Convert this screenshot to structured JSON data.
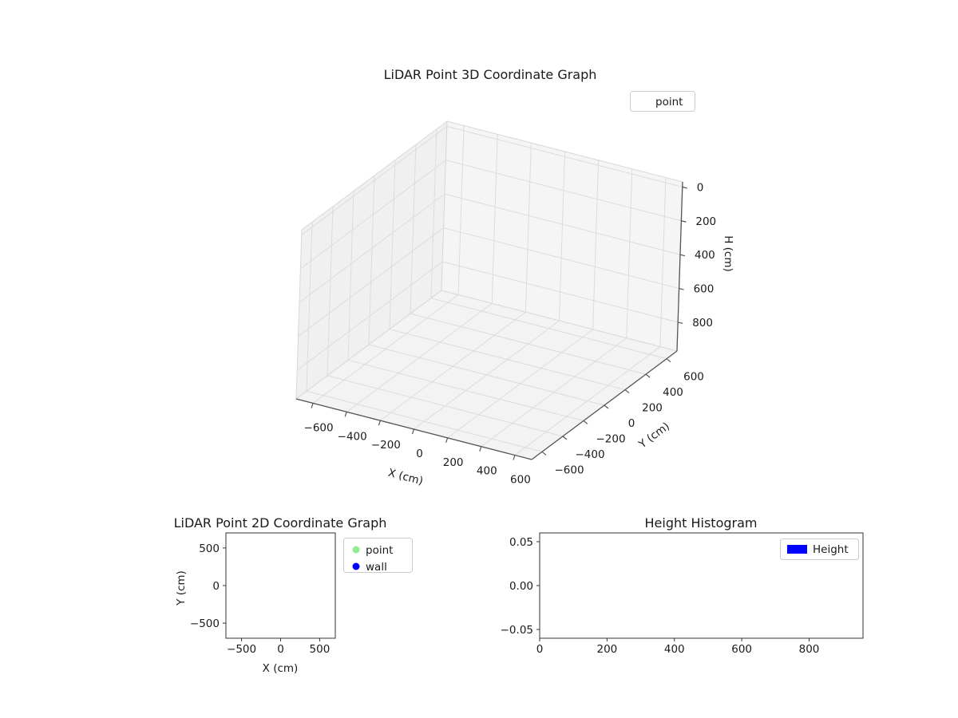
{
  "figure": {
    "background": "#ffffff"
  },
  "chart_data": [
    {
      "type": "scatter",
      "projection": "3d",
      "title": "LiDAR Point 3D Coordinate Graph",
      "xlabel": "X (cm)",
      "ylabel": "Y (cm)",
      "zlabel": "H (cm)",
      "xlim": [
        -700,
        700
      ],
      "ylim": [
        -700,
        700
      ],
      "z_display_range": [
        -30,
        970
      ],
      "z_axis_inverted": true,
      "xticks": [
        -600,
        -400,
        -200,
        0,
        200,
        400,
        600
      ],
      "yticks": [
        -600,
        -400,
        -200,
        0,
        200,
        400,
        600
      ],
      "zticks": [
        0,
        200,
        400,
        600,
        800
      ],
      "grid": true,
      "legend_position": "upper right",
      "series": [
        {
          "name": "point",
          "marker": "none",
          "points": []
        }
      ]
    },
    {
      "type": "scatter",
      "title": "LiDAR Point 2D Coordinate Graph",
      "xlabel": "X (cm)",
      "ylabel": "Y (cm)",
      "xlim": [
        -700,
        700
      ],
      "ylim": [
        -700,
        700
      ],
      "xticks": [
        -500,
        0,
        500
      ],
      "yticks": [
        -500,
        0,
        500
      ],
      "grid": false,
      "legend_position": "outside upper right",
      "series": [
        {
          "name": "point",
          "color": "#90ee90",
          "points": []
        },
        {
          "name": "wall",
          "color": "#0000ff",
          "points": []
        }
      ]
    },
    {
      "type": "bar",
      "title": "Height Histogram",
      "xlabel": "",
      "ylabel": "",
      "xlim": [
        0,
        960
      ],
      "ylim": [
        -0.06,
        0.06
      ],
      "xticks": [
        0,
        200,
        400,
        600,
        800
      ],
      "yticks": [
        -0.05,
        0,
        0.05
      ],
      "ytick_format": "2dp",
      "grid": false,
      "legend_position": "upper right",
      "series": [
        {
          "name": "Height",
          "color": "#0000ff",
          "values": []
        }
      ]
    }
  ]
}
